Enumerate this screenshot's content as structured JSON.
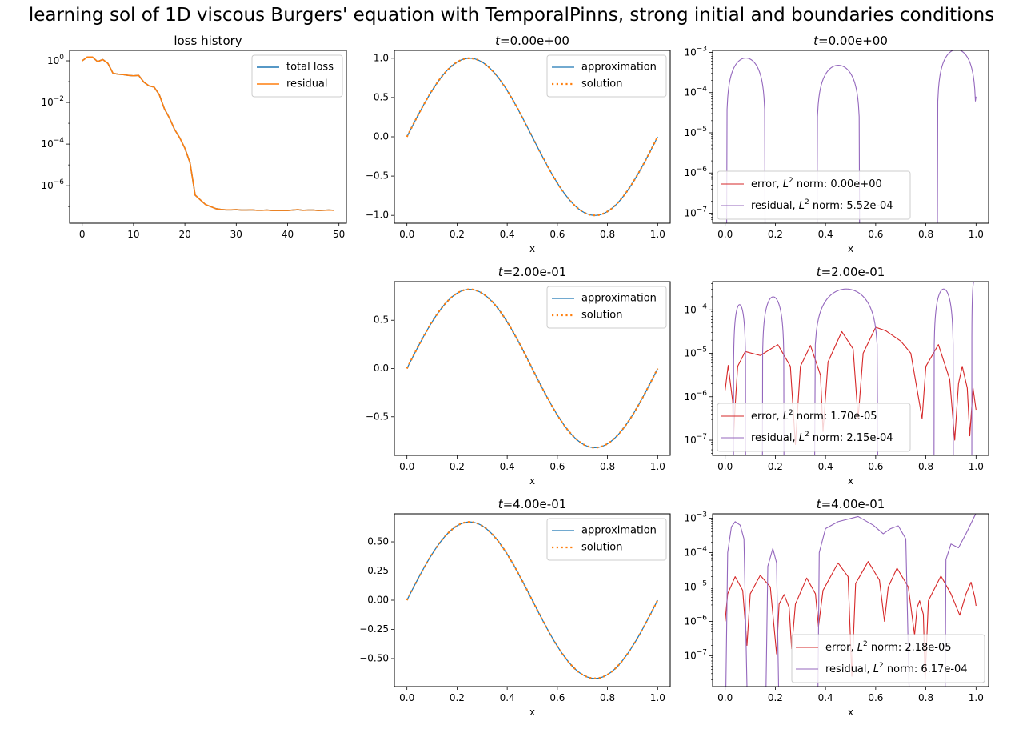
{
  "figure": {
    "suptitle": "learning sol of 1D viscous Burgers' equation with TemporalPinns, strong initial and boundaries conditions",
    "colors": {
      "total_loss": "#1f77b4",
      "residual_loss": "#ff7f0e",
      "approximation": "#1f77b4",
      "solution": "#ff7f0e",
      "error": "#d62728",
      "residual": "#9467bd"
    }
  },
  "chart_data": [
    {
      "id": "loss",
      "type": "line",
      "title": "loss history",
      "xlabel": "",
      "ylabel": "",
      "yscale": "log",
      "xlim": [
        -2.45,
        51.45
      ],
      "ylim_log10": [
        -7.8,
        0.5
      ],
      "xticks": [
        0,
        10,
        20,
        30,
        40,
        50
      ],
      "yticks_log10": [
        0,
        -2,
        -4,
        -6
      ],
      "ytick_labels": [
        "10^0",
        "10^-2",
        "10^-4",
        "10^-6"
      ],
      "legend": [
        "total loss",
        "residual"
      ],
      "legend_position": "upper right",
      "x": [
        0,
        1,
        2,
        3,
        4,
        5,
        6,
        7,
        8,
        9,
        10,
        11,
        12,
        13,
        14,
        15,
        16,
        17,
        18,
        19,
        20,
        21,
        22,
        23,
        24,
        25,
        26,
        27,
        28,
        29,
        30,
        31,
        32,
        33,
        34,
        35,
        36,
        37,
        38,
        39,
        40,
        41,
        42,
        43,
        44,
        45,
        46,
        47,
        48,
        49
      ],
      "series": [
        {
          "name": "total loss",
          "log10_values": [
            0.0,
            0.18,
            0.18,
            -0.04,
            0.06,
            -0.12,
            -0.6,
            -0.64,
            -0.66,
            -0.7,
            -0.72,
            -0.7,
            -1.02,
            -1.2,
            -1.26,
            -1.62,
            -2.3,
            -2.75,
            -3.3,
            -3.7,
            -4.2,
            -4.9,
            -6.45,
            -6.68,
            -6.9,
            -7.0,
            -7.1,
            -7.14,
            -7.16,
            -7.16,
            -7.15,
            -7.17,
            -7.17,
            -7.16,
            -7.18,
            -7.18,
            -7.17,
            -7.19,
            -7.19,
            -7.19,
            -7.19,
            -7.17,
            -7.15,
            -7.18,
            -7.17,
            -7.17,
            -7.19,
            -7.18,
            -7.17,
            -7.18
          ]
        },
        {
          "name": "residual",
          "log10_values": [
            0.0,
            0.18,
            0.18,
            -0.04,
            0.06,
            -0.12,
            -0.6,
            -0.64,
            -0.66,
            -0.7,
            -0.72,
            -0.7,
            -1.02,
            -1.2,
            -1.26,
            -1.62,
            -2.3,
            -2.75,
            -3.3,
            -3.7,
            -4.2,
            -4.9,
            -6.45,
            -6.68,
            -6.9,
            -7.0,
            -7.1,
            -7.14,
            -7.16,
            -7.16,
            -7.15,
            -7.17,
            -7.17,
            -7.16,
            -7.18,
            -7.18,
            -7.17,
            -7.19,
            -7.19,
            -7.19,
            -7.19,
            -7.17,
            -7.15,
            -7.18,
            -7.17,
            -7.17,
            -7.19,
            -7.18,
            -7.17,
            -7.18
          ]
        }
      ]
    },
    {
      "id": "sol_t0",
      "type": "line",
      "title_prefix": "t",
      "title_value": "=0.00e+00",
      "xlabel": "x",
      "xlim": [
        -0.05,
        1.05
      ],
      "ylim": [
        -1.1,
        1.1
      ],
      "xticks": [
        0.0,
        0.2,
        0.4,
        0.6,
        0.8,
        1.0
      ],
      "xtick_labels": [
        "0.0",
        "0.2",
        "0.4",
        "0.6",
        "0.8",
        "1.0"
      ],
      "yticks": [
        1.0,
        0.5,
        0.0,
        -0.5,
        -1.0
      ],
      "ytick_labels": [
        "1.0",
        "0.5",
        "0.0",
        "−0.5",
        "−1.0"
      ],
      "legend": [
        "approximation",
        "solution"
      ],
      "legend_position": "upper right",
      "function": "amplitude*sin(2*pi*x)",
      "amplitude": 1.0
    },
    {
      "id": "err_t0",
      "type": "line",
      "yscale": "log",
      "title_prefix": "t",
      "title_value": "=0.00e+00",
      "xlabel": "x",
      "xlim": [
        -0.05,
        1.05
      ],
      "ylim_log10": [
        -7.25,
        -2.95
      ],
      "yticks_log10": [
        -3,
        -4,
        -5,
        -6,
        -7
      ],
      "ytick_labels": [
        "10^-3",
        "10^-4",
        "10^-5",
        "10^-6",
        "10^-7"
      ],
      "xtick_labels": [
        "0.0",
        "0.2",
        "0.4",
        "0.6",
        "0.8",
        "1.0"
      ],
      "legend": [
        "error, L^2 norm: 0.00e+00",
        "residual, L^2 norm: 5.52e-04"
      ],
      "legend_entries": [
        {
          "prefix": "error, ",
          "suffix": " norm: 0.00e+00"
        },
        {
          "prefix": "residual, ",
          "suffix": " norm: 5.52e-04"
        }
      ],
      "legend_position": "lower left",
      "series": [
        {
          "name": "error",
          "points": []
        },
        {
          "name": "residual",
          "arches": [
            [
              0.005,
              0.16,
              -3.14
            ],
            [
              0.365,
              0.537,
              -3.32
            ],
            [
              0.845,
              1.0,
              -2.93
            ]
          ],
          "end_value_log10": -4.1
        }
      ]
    },
    {
      "id": "sol_t1",
      "type": "line",
      "title_prefix": "t",
      "title_value": "=2.00e-01",
      "xlabel": "x",
      "xlim": [
        -0.05,
        1.05
      ],
      "ylim": [
        -0.9,
        0.9
      ],
      "yticks": [
        0.5,
        0.0,
        -0.5
      ],
      "ytick_labels": [
        "0.5",
        "0.0",
        "−0.5"
      ],
      "xtick_labels": [
        "0.0",
        "0.2",
        "0.4",
        "0.6",
        "0.8",
        "1.0"
      ],
      "legend": [
        "approximation",
        "solution"
      ],
      "legend_position": "upper right",
      "function": "amplitude*sin(2*pi*x)",
      "amplitude": 0.82
    },
    {
      "id": "err_t1",
      "type": "line",
      "yscale": "log",
      "title_prefix": "t",
      "title_value": "=2.00e-01",
      "xlabel": "x",
      "xlim": [
        -0.05,
        1.05
      ],
      "ylim_log10": [
        -7.35,
        -3.35
      ],
      "yticks_log10": [
        -4,
        -5,
        -6,
        -7
      ],
      "ytick_labels": [
        "10^-4",
        "10^-5",
        "10^-6",
        "10^-7"
      ],
      "xtick_labels": [
        "0.0",
        "0.2",
        "0.4",
        "0.6",
        "0.8",
        "1.0"
      ],
      "legend": [
        "error, L^2 norm: 1.70e-05",
        "residual, L^2 norm: 2.15e-04"
      ],
      "legend_entries": [
        {
          "prefix": "error, ",
          "suffix": " norm: 1.70e-05"
        },
        {
          "prefix": "residual, ",
          "suffix": " norm: 2.15e-04"
        }
      ],
      "legend_position": "lower left",
      "series": [
        {
          "name": "error",
          "log10_points": [
            [
              0.0,
              -5.85
            ],
            [
              0.012,
              -5.28
            ],
            [
              0.03,
              -6.1
            ],
            [
              0.033,
              -7.0
            ],
            [
              0.04,
              -6.2
            ],
            [
              0.05,
              -5.3
            ],
            [
              0.08,
              -4.96
            ],
            [
              0.14,
              -5.05
            ],
            [
              0.21,
              -4.8
            ],
            [
              0.26,
              -5.3
            ],
            [
              0.28,
              -7.1
            ],
            [
              0.3,
              -5.3
            ],
            [
              0.34,
              -4.82
            ],
            [
              0.38,
              -5.5
            ],
            [
              0.39,
              -6.8
            ],
            [
              0.41,
              -5.2
            ],
            [
              0.465,
              -4.5
            ],
            [
              0.51,
              -4.9
            ],
            [
              0.53,
              -6.5
            ],
            [
              0.55,
              -5.0
            ],
            [
              0.6,
              -4.4
            ],
            [
              0.64,
              -4.48
            ],
            [
              0.7,
              -4.72
            ],
            [
              0.74,
              -5.0
            ],
            [
              0.785,
              -6.5
            ],
            [
              0.8,
              -5.3
            ],
            [
              0.85,
              -4.8
            ],
            [
              0.895,
              -5.6
            ],
            [
              0.915,
              -7.0
            ],
            [
              0.93,
              -5.7
            ],
            [
              0.945,
              -5.3
            ],
            [
              0.965,
              -5.8
            ],
            [
              0.975,
              -6.9
            ],
            [
              0.988,
              -5.8
            ],
            [
              1.0,
              -6.3
            ]
          ]
        },
        {
          "name": "residual",
          "arches": [
            [
              0.033,
              0.082,
              -3.88
            ],
            [
              0.148,
              0.235,
              -3.7
            ],
            [
              0.355,
              0.61,
              -3.52
            ],
            [
              0.832,
              0.91,
              -3.52
            ],
            [
              0.983,
              1.0,
              -3.35
            ]
          ]
        }
      ]
    },
    {
      "id": "sol_t2",
      "type": "line",
      "title_prefix": "t",
      "title_value": "=4.00e-01",
      "xlabel": "x",
      "xlim": [
        -0.05,
        1.05
      ],
      "ylim": [
        -0.74,
        0.74
      ],
      "yticks": [
        0.5,
        0.25,
        0.0,
        -0.25,
        -0.5
      ],
      "ytick_labels": [
        "0.50",
        "0.25",
        "0.00",
        "−0.25",
        "−0.50"
      ],
      "xtick_labels": [
        "0.0",
        "0.2",
        "0.4",
        "0.6",
        "0.8",
        "1.0"
      ],
      "legend": [
        "approximation",
        "solution"
      ],
      "legend_position": "upper right",
      "function": "amplitude*sin(2*pi*x)",
      "amplitude": 0.67
    },
    {
      "id": "err_t2",
      "type": "line",
      "yscale": "log",
      "title_prefix": "t",
      "title_value": "=4.00e-01",
      "xlabel": "x",
      "xlim": [
        -0.05,
        1.05
      ],
      "ylim_log10": [
        -7.9,
        -2.87
      ],
      "yticks_log10": [
        -3,
        -4,
        -5,
        -6,
        -7
      ],
      "ytick_labels": [
        "10^-3",
        "10^-4",
        "10^-5",
        "10^-6",
        "10^-7"
      ],
      "xtick_labels": [
        "0.0",
        "0.2",
        "0.4",
        "0.6",
        "0.8",
        "1.0"
      ],
      "legend": [
        "error, L^2 norm: 2.18e-05",
        "residual, L^2 norm: 6.17e-04"
      ],
      "legend_entries": [
        {
          "prefix": "error, ",
          "suffix": " norm: 2.18e-05"
        },
        {
          "prefix": "residual, ",
          "suffix": " norm: 6.17e-04"
        }
      ],
      "legend_position": "lower right",
      "series": [
        {
          "name": "error",
          "log10_points": [
            [
              0.0,
              -6.0
            ],
            [
              0.01,
              -5.2
            ],
            [
              0.04,
              -4.7
            ],
            [
              0.07,
              -5.1
            ],
            [
              0.087,
              -6.7
            ],
            [
              0.1,
              -5.2
            ],
            [
              0.14,
              -4.66
            ],
            [
              0.18,
              -5.0
            ],
            [
              0.205,
              -6.95
            ],
            [
              0.215,
              -5.5
            ],
            [
              0.235,
              -5.22
            ],
            [
              0.255,
              -5.6
            ],
            [
              0.265,
              -6.8
            ],
            [
              0.28,
              -5.5
            ],
            [
              0.325,
              -4.74
            ],
            [
              0.36,
              -5.2
            ],
            [
              0.372,
              -6.15
            ],
            [
              0.39,
              -5.1
            ],
            [
              0.45,
              -4.3
            ],
            [
              0.49,
              -4.7
            ],
            [
              0.505,
              -7.6
            ],
            [
              0.52,
              -4.9
            ],
            [
              0.57,
              -4.26
            ],
            [
              0.615,
              -4.8
            ],
            [
              0.635,
              -6.0
            ],
            [
              0.65,
              -5.0
            ],
            [
              0.685,
              -4.45
            ],
            [
              0.73,
              -5.0
            ],
            [
              0.755,
              -6.4
            ],
            [
              0.765,
              -5.6
            ],
            [
              0.775,
              -5.4
            ],
            [
              0.79,
              -5.8
            ],
            [
              0.797,
              -7.7
            ],
            [
              0.81,
              -5.4
            ],
            [
              0.86,
              -4.68
            ],
            [
              0.9,
              -5.2
            ],
            [
              0.935,
              -5.82
            ],
            [
              0.96,
              -5.2
            ],
            [
              0.98,
              -4.86
            ],
            [
              0.995,
              -5.3
            ],
            [
              1.0,
              -5.55
            ]
          ]
        },
        {
          "name": "residual",
          "log10_points": [
            [
              0.003,
              -7.9
            ],
            [
              0.01,
              -4.0
            ],
            [
              0.025,
              -3.25
            ],
            [
              0.04,
              -3.1
            ],
            [
              0.06,
              -3.2
            ],
            [
              0.075,
              -3.6
            ],
            [
              0.087,
              -7.9
            ]
          ],
          "extra": [
            [
              [
                0.163,
                -7.9
              ],
              [
                0.17,
                -4.4
              ],
              [
                0.19,
                -3.88
              ],
              [
                0.205,
                -4.3
              ],
              [
                0.213,
                -7.9
              ]
            ],
            [
              [
                0.37,
                -7.9
              ],
              [
                0.375,
                -4.0
              ],
              [
                0.4,
                -3.3
              ],
              [
                0.45,
                -3.1
              ],
              [
                0.53,
                -2.95
              ],
              [
                0.59,
                -3.2
              ],
              [
                0.63,
                -3.45
              ],
              [
                0.66,
                -3.3
              ],
              [
                0.69,
                -3.22
              ],
              [
                0.72,
                -3.6
              ],
              [
                0.733,
                -7.9
              ]
            ],
            [
              [
                0.877,
                -7.9
              ],
              [
                0.88,
                -4.2
              ],
              [
                0.9,
                -3.75
              ],
              [
                0.93,
                -3.86
              ],
              [
                0.96,
                -3.45
              ],
              [
                1.0,
                -2.85
              ]
            ]
          ]
        }
      ]
    }
  ]
}
